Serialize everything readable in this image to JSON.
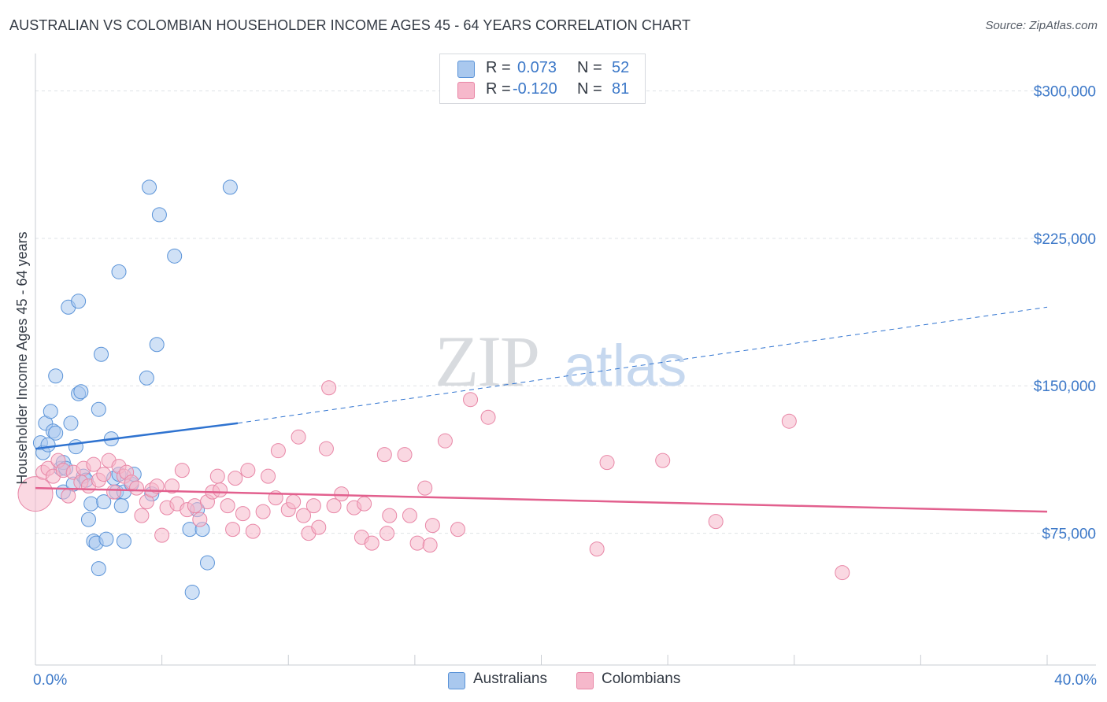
{
  "header": {
    "title": "AUSTRALIAN VS COLOMBIAN HOUSEHOLDER INCOME AGES 45 - 64 YEARS CORRELATION CHART",
    "source": "Source: ZipAtlas.com"
  },
  "watermark": {
    "zip": "ZIP",
    "atlas": "atlas"
  },
  "legend": {
    "rows": [
      {
        "r_label": "R =",
        "r_value": "0.073",
        "n_label": "N =",
        "n_value": "52",
        "color": "#a9c8ee"
      },
      {
        "r_label": "R =",
        "r_value": "-0.120",
        "n_label": "N =",
        "n_value": "81",
        "color": "#f6b8cb"
      }
    ]
  },
  "bottom_legend": {
    "items": [
      {
        "label": "Australians",
        "color": "#a9c8ee"
      },
      {
        "label": "Colombians",
        "color": "#f6b8cb"
      }
    ]
  },
  "chart_data": {
    "type": "scatter",
    "title": "AUSTRALIAN VS COLOMBIAN HOUSEHOLDER INCOME AGES 45 - 64 YEARS CORRELATION CHART",
    "ylabel": "Householder Income Ages 45 - 64 years",
    "xlabel": "",
    "x_unit": "%",
    "xlim": [
      0,
      40
    ],
    "ylim": [
      8000,
      315000
    ],
    "x_tick_labels": [
      {
        "value": 0,
        "label": "0.0%"
      },
      {
        "value": 40,
        "label": "40.0%"
      }
    ],
    "y_ticks": [
      {
        "value": 75000,
        "label": "$75,000"
      },
      {
        "value": 150000,
        "label": "$150,000"
      },
      {
        "value": 225000,
        "label": "$225,000"
      },
      {
        "value": 300000,
        "label": "$300,000"
      }
    ],
    "grid": true,
    "legend_position": "top-center",
    "series": [
      {
        "name": "Australians",
        "color": "#5a93d8",
        "fill": "#a9c8ee",
        "trend": {
          "x_start": 0,
          "y_start": 118000,
          "x_end": 8,
          "y_end": 131000,
          "x_dash_end": 40,
          "y_dash_end": 190000,
          "line_color": "#2f73d0"
        },
        "points": [
          [
            0.2,
            121000
          ],
          [
            0.3,
            116000
          ],
          [
            0.4,
            131000
          ],
          [
            0.5,
            120000
          ],
          [
            0.6,
            137000
          ],
          [
            0.7,
            127000
          ],
          [
            0.8,
            155000
          ],
          [
            0.8,
            126000
          ],
          [
            1.0,
            108000
          ],
          [
            1.1,
            96000
          ],
          [
            1.1,
            111000
          ],
          [
            1.2,
            108000
          ],
          [
            1.3,
            190000
          ],
          [
            1.4,
            131000
          ],
          [
            1.5,
            100000
          ],
          [
            1.6,
            119000
          ],
          [
            1.7,
            193000
          ],
          [
            1.7,
            146000
          ],
          [
            1.8,
            147000
          ],
          [
            1.9,
            104000
          ],
          [
            2.0,
            102000
          ],
          [
            2.1,
            82000
          ],
          [
            2.2,
            90000
          ],
          [
            2.3,
            71000
          ],
          [
            2.4,
            70000
          ],
          [
            2.5,
            138000
          ],
          [
            2.5,
            57000
          ],
          [
            2.6,
            166000
          ],
          [
            2.7,
            91000
          ],
          [
            2.8,
            72000
          ],
          [
            3.0,
            123000
          ],
          [
            3.1,
            103000
          ],
          [
            3.2,
            96000
          ],
          [
            3.3,
            105000
          ],
          [
            3.3,
            208000
          ],
          [
            3.4,
            89000
          ],
          [
            3.5,
            96000
          ],
          [
            3.5,
            71000
          ],
          [
            3.8,
            100000
          ],
          [
            3.9,
            105000
          ],
          [
            4.4,
            154000
          ],
          [
            4.5,
            251000
          ],
          [
            4.6,
            95000
          ],
          [
            4.8,
            171000
          ],
          [
            4.9,
            237000
          ],
          [
            5.5,
            216000
          ],
          [
            6.1,
            77000
          ],
          [
            6.2,
            45000
          ],
          [
            6.4,
            87000
          ],
          [
            6.6,
            77000
          ],
          [
            6.8,
            60000
          ],
          [
            7.7,
            251000
          ]
        ]
      },
      {
        "name": "Colombians",
        "color": "#e886a6",
        "fill": "#f6b8cb",
        "trend": {
          "x_start": 0,
          "y_start": 98000,
          "x_end": 40,
          "y_end": 86000,
          "line_color": "#e2608e"
        },
        "points": [
          [
            0.0,
            95000
          ],
          [
            0.3,
            106000
          ],
          [
            0.5,
            108000
          ],
          [
            0.7,
            104000
          ],
          [
            0.9,
            112000
          ],
          [
            1.1,
            107000
          ],
          [
            1.3,
            94000
          ],
          [
            1.5,
            106000
          ],
          [
            1.8,
            101000
          ],
          [
            1.9,
            108000
          ],
          [
            2.1,
            99000
          ],
          [
            2.3,
            110000
          ],
          [
            2.5,
            102000
          ],
          [
            2.7,
            105000
          ],
          [
            2.9,
            112000
          ],
          [
            3.1,
            96000
          ],
          [
            3.3,
            109000
          ],
          [
            3.5,
            104000
          ],
          [
            3.6,
            106000
          ],
          [
            3.8,
            101000
          ],
          [
            4.0,
            98000
          ],
          [
            4.2,
            84000
          ],
          [
            4.4,
            91000
          ],
          [
            4.6,
            97000
          ],
          [
            4.8,
            99000
          ],
          [
            5.0,
            74000
          ],
          [
            5.2,
            88000
          ],
          [
            5.4,
            99000
          ],
          [
            5.6,
            90000
          ],
          [
            5.8,
            107000
          ],
          [
            6.0,
            87000
          ],
          [
            6.3,
            89000
          ],
          [
            6.5,
            82000
          ],
          [
            6.8,
            91000
          ],
          [
            7.0,
            96000
          ],
          [
            7.2,
            104000
          ],
          [
            7.3,
            97000
          ],
          [
            7.6,
            89000
          ],
          [
            7.8,
            77000
          ],
          [
            7.9,
            103000
          ],
          [
            8.2,
            85000
          ],
          [
            8.4,
            107000
          ],
          [
            8.6,
            76000
          ],
          [
            9.0,
            86000
          ],
          [
            9.2,
            104000
          ],
          [
            9.5,
            93000
          ],
          [
            9.6,
            117000
          ],
          [
            10.0,
            87000
          ],
          [
            10.2,
            91000
          ],
          [
            10.4,
            124000
          ],
          [
            10.6,
            84000
          ],
          [
            10.8,
            75000
          ],
          [
            11.0,
            89000
          ],
          [
            11.2,
            78000
          ],
          [
            11.5,
            118000
          ],
          [
            11.6,
            149000
          ],
          [
            11.8,
            89000
          ],
          [
            12.1,
            95000
          ],
          [
            12.6,
            88000
          ],
          [
            12.9,
            73000
          ],
          [
            13.0,
            90000
          ],
          [
            13.3,
            70000
          ],
          [
            13.8,
            115000
          ],
          [
            13.9,
            75000
          ],
          [
            14.0,
            84000
          ],
          [
            14.6,
            115000
          ],
          [
            14.8,
            84000
          ],
          [
            15.1,
            70000
          ],
          [
            15.4,
            98000
          ],
          [
            15.6,
            69000
          ],
          [
            15.7,
            79000
          ],
          [
            16.2,
            122000
          ],
          [
            16.7,
            77000
          ],
          [
            17.2,
            143000
          ],
          [
            17.9,
            134000
          ],
          [
            22.2,
            67000
          ],
          [
            22.6,
            111000
          ],
          [
            24.8,
            112000
          ],
          [
            26.9,
            81000
          ],
          [
            29.8,
            132000
          ],
          [
            31.9,
            55000
          ]
        ]
      }
    ]
  }
}
